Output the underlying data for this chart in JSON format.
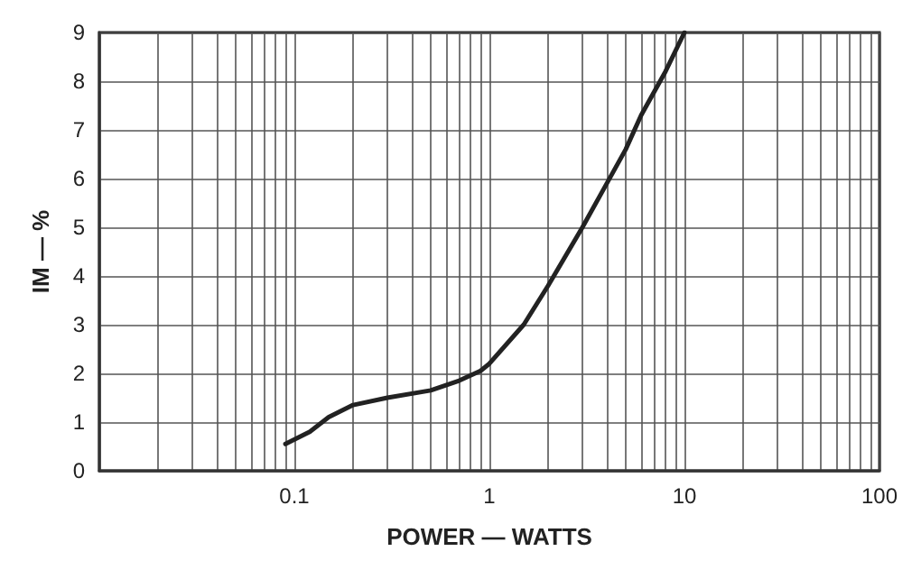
{
  "chart_data": {
    "type": "line",
    "xlabel": "POWER — WATTS",
    "ylabel": "IM — %",
    "log": "x",
    "grid": true,
    "marker": "none",
    "line_style": "solid",
    "xlim": [
      0.01,
      100
    ],
    "xticks": [
      {
        "value": 0.01,
        "label": null
      },
      {
        "value": 0.02,
        "label": null
      },
      {
        "value": 0.03,
        "label": null
      },
      {
        "value": 0.04,
        "label": null
      },
      {
        "value": 0.05,
        "label": null
      },
      {
        "value": 0.06,
        "label": null
      },
      {
        "value": 0.07,
        "label": null
      },
      {
        "value": 0.08,
        "label": null
      },
      {
        "value": 0.09,
        "label": null
      },
      {
        "value": 0.1,
        "label": "0.1"
      },
      {
        "value": 0.2,
        "label": null
      },
      {
        "value": 0.3,
        "label": null
      },
      {
        "value": 0.4,
        "label": null
      },
      {
        "value": 0.5,
        "label": null
      },
      {
        "value": 0.6,
        "label": null
      },
      {
        "value": 0.7,
        "label": null
      },
      {
        "value": 0.8,
        "label": null
      },
      {
        "value": 0.9,
        "label": null
      },
      1,
      {
        "value": 2,
        "label": null
      },
      {
        "value": 3,
        "label": null
      },
      {
        "value": 4,
        "label": null
      },
      {
        "value": 5,
        "label": null
      },
      {
        "value": 6,
        "label": null
      },
      {
        "value": 7,
        "label": null
      },
      {
        "value": 8,
        "label": null
      },
      {
        "value": 9,
        "label": null
      },
      10,
      {
        "value": 20,
        "label": null
      },
      {
        "value": 30,
        "label": null
      },
      {
        "value": 40,
        "label": null
      },
      {
        "value": 50,
        "label": null
      },
      {
        "value": 60,
        "label": null
      },
      {
        "value": 70,
        "label": null
      },
      {
        "value": 80,
        "label": null
      },
      {
        "value": 90,
        "label": null
      },
      100
    ],
    "ylim": [
      0,
      9
    ],
    "yticks": [
      0,
      1,
      2,
      3,
      4,
      5,
      6,
      7,
      8,
      9
    ],
    "series": [
      {
        "color": "#222222",
        "x": [
          0.09,
          0.12,
          0.15,
          0.2,
          0.3,
          0.5,
          0.7,
          0.9,
          1.0,
          1.5,
          2,
          3,
          4,
          5,
          6,
          8,
          10
        ],
        "values": [
          0.55,
          0.8,
          1.1,
          1.35,
          1.5,
          1.65,
          1.85,
          2.05,
          2.2,
          3.0,
          3.8,
          5.0,
          5.9,
          6.6,
          7.3,
          8.2,
          9.0
        ]
      }
    ]
  }
}
